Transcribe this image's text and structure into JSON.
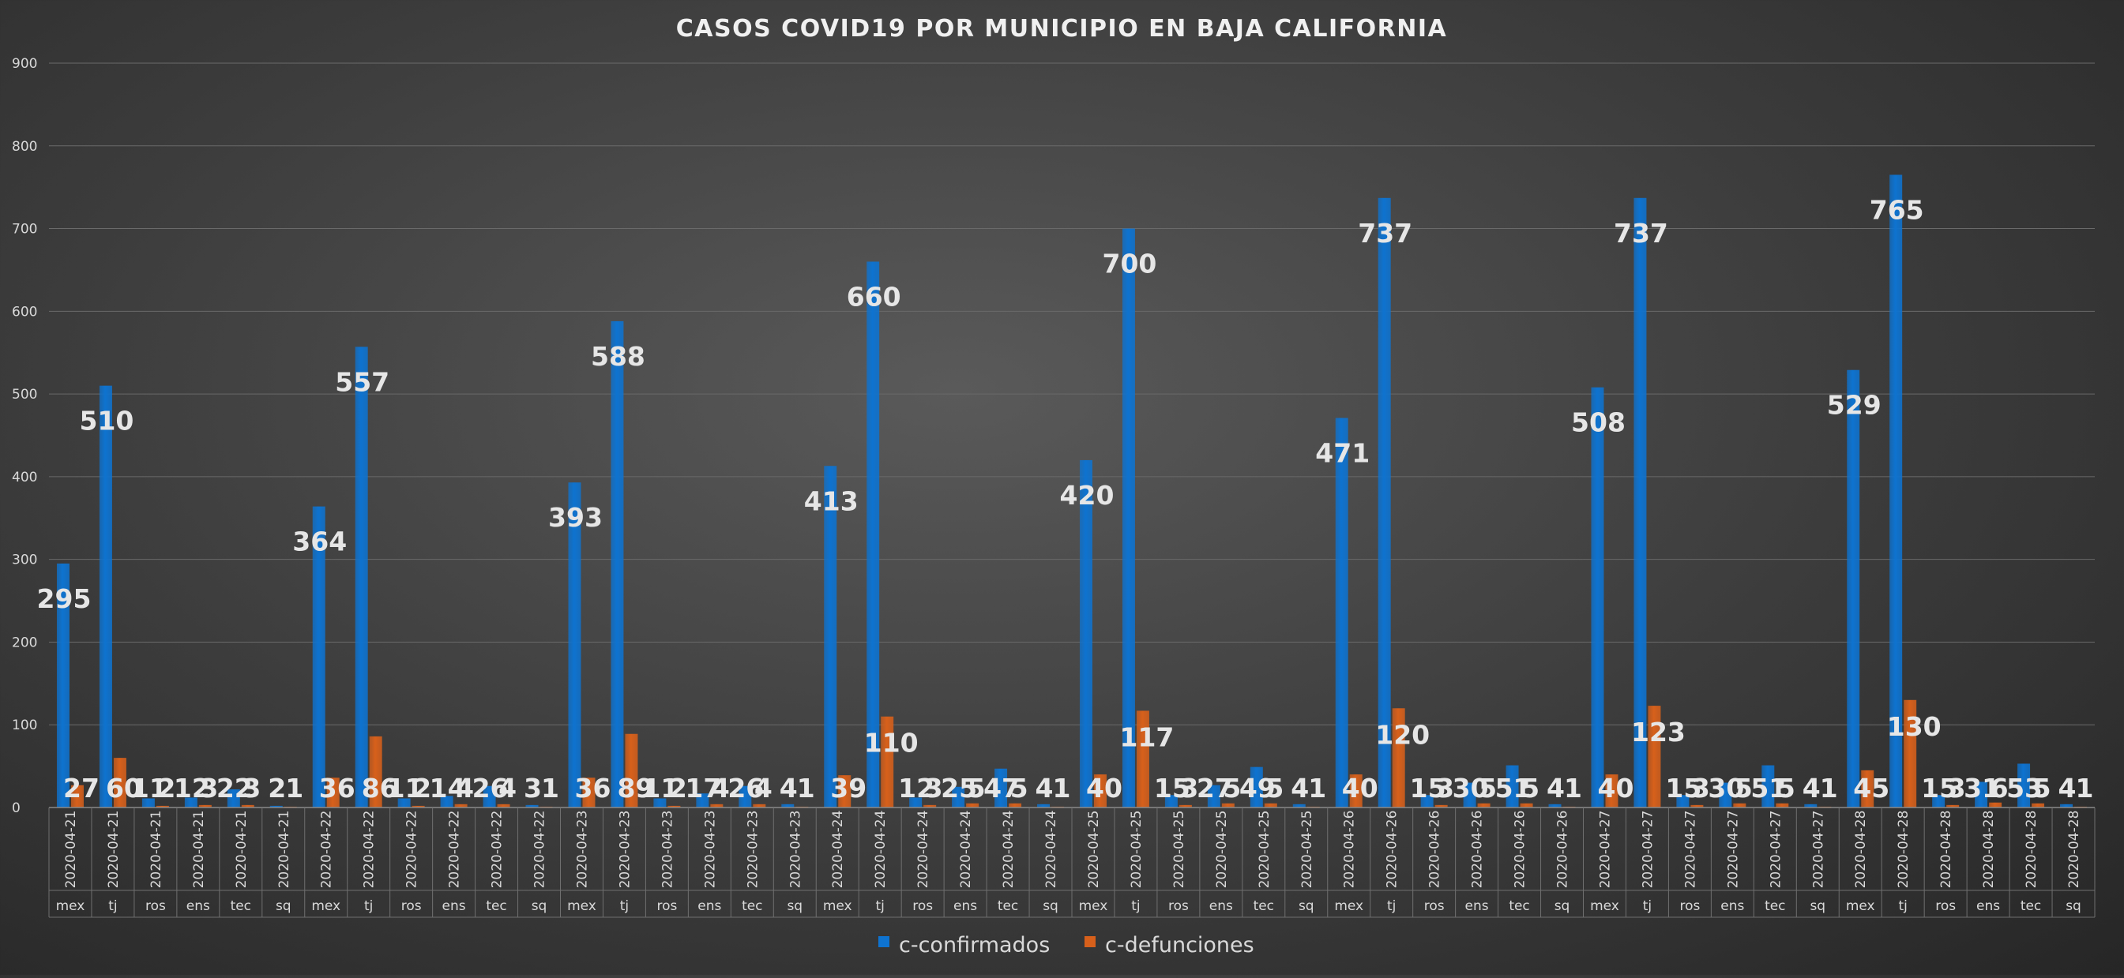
{
  "chart_data": {
    "type": "bar",
    "title": "CASOS COVID19 POR MUNICIPIO EN BAJA CALIFORNIA",
    "xlabel": "",
    "ylabel": "",
    "ylim": [
      0,
      900
    ],
    "yticks": [
      0,
      100,
      200,
      300,
      400,
      500,
      600,
      700,
      800,
      900
    ],
    "grid": true,
    "legend_position": "bottom",
    "dates": [
      "2020-04-21",
      "2020-04-21",
      "2020-04-21",
      "2020-04-21",
      "2020-04-21",
      "2020-04-21",
      "2020-04-22",
      "2020-04-22",
      "2020-04-22",
      "2020-04-22",
      "2020-04-22",
      "2020-04-22",
      "2020-04-23",
      "2020-04-23",
      "2020-04-23",
      "2020-04-23",
      "2020-04-23",
      "2020-04-23",
      "2020-04-24",
      "2020-04-24",
      "2020-04-24",
      "2020-04-24",
      "2020-04-24",
      "2020-04-24",
      "2020-04-25",
      "2020-04-25",
      "2020-04-25",
      "2020-04-25",
      "2020-04-25",
      "2020-04-25",
      "2020-04-26",
      "2020-04-26",
      "2020-04-26",
      "2020-04-26",
      "2020-04-26",
      "2020-04-26",
      "2020-04-27",
      "2020-04-27",
      "2020-04-27",
      "2020-04-27",
      "2020-04-27",
      "2020-04-27",
      "2020-04-28",
      "2020-04-28",
      "2020-04-28",
      "2020-04-28",
      "2020-04-28",
      "2020-04-28"
    ],
    "categories": [
      "mex",
      "tj",
      "ros",
      "ens",
      "tec",
      "sq",
      "mex",
      "tj",
      "ros",
      "ens",
      "tec",
      "sq",
      "mex",
      "tj",
      "ros",
      "ens",
      "tec",
      "sq",
      "mex",
      "tj",
      "ros",
      "ens",
      "tec",
      "sq",
      "mex",
      "tj",
      "ros",
      "ens",
      "tec",
      "sq",
      "mex",
      "tj",
      "ros",
      "ens",
      "tec",
      "sq",
      "mex",
      "tj",
      "ros",
      "ens",
      "tec",
      "sq",
      "mex",
      "tj",
      "ros",
      "ens",
      "tec",
      "sq"
    ],
    "series": [
      {
        "name": "c-confirmados",
        "color": "#0E73D0",
        "values": [
          295,
          510,
          11,
          12,
          22,
          2,
          364,
          557,
          11,
          14,
          26,
          3,
          393,
          588,
          11,
          17,
          26,
          4,
          413,
          660,
          12,
          25,
          47,
          4,
          420,
          700,
          15,
          27,
          49,
          4,
          471,
          737,
          15,
          30,
          51,
          4,
          508,
          737,
          15,
          30,
          51,
          4,
          529,
          765,
          15,
          31,
          53,
          4
        ]
      },
      {
        "name": "c-defunciones",
        "color": "#D7601B",
        "values": [
          27,
          60,
          2,
          3,
          3,
          1,
          36,
          86,
          2,
          4,
          4,
          1,
          36,
          89,
          2,
          4,
          4,
          1,
          39,
          110,
          3,
          5,
          5,
          1,
          40,
          117,
          3,
          5,
          5,
          1,
          40,
          120,
          3,
          5,
          5,
          1,
          40,
          123,
          3,
          5,
          5,
          1,
          45,
          130,
          3,
          6,
          5,
          1
        ]
      }
    ]
  }
}
